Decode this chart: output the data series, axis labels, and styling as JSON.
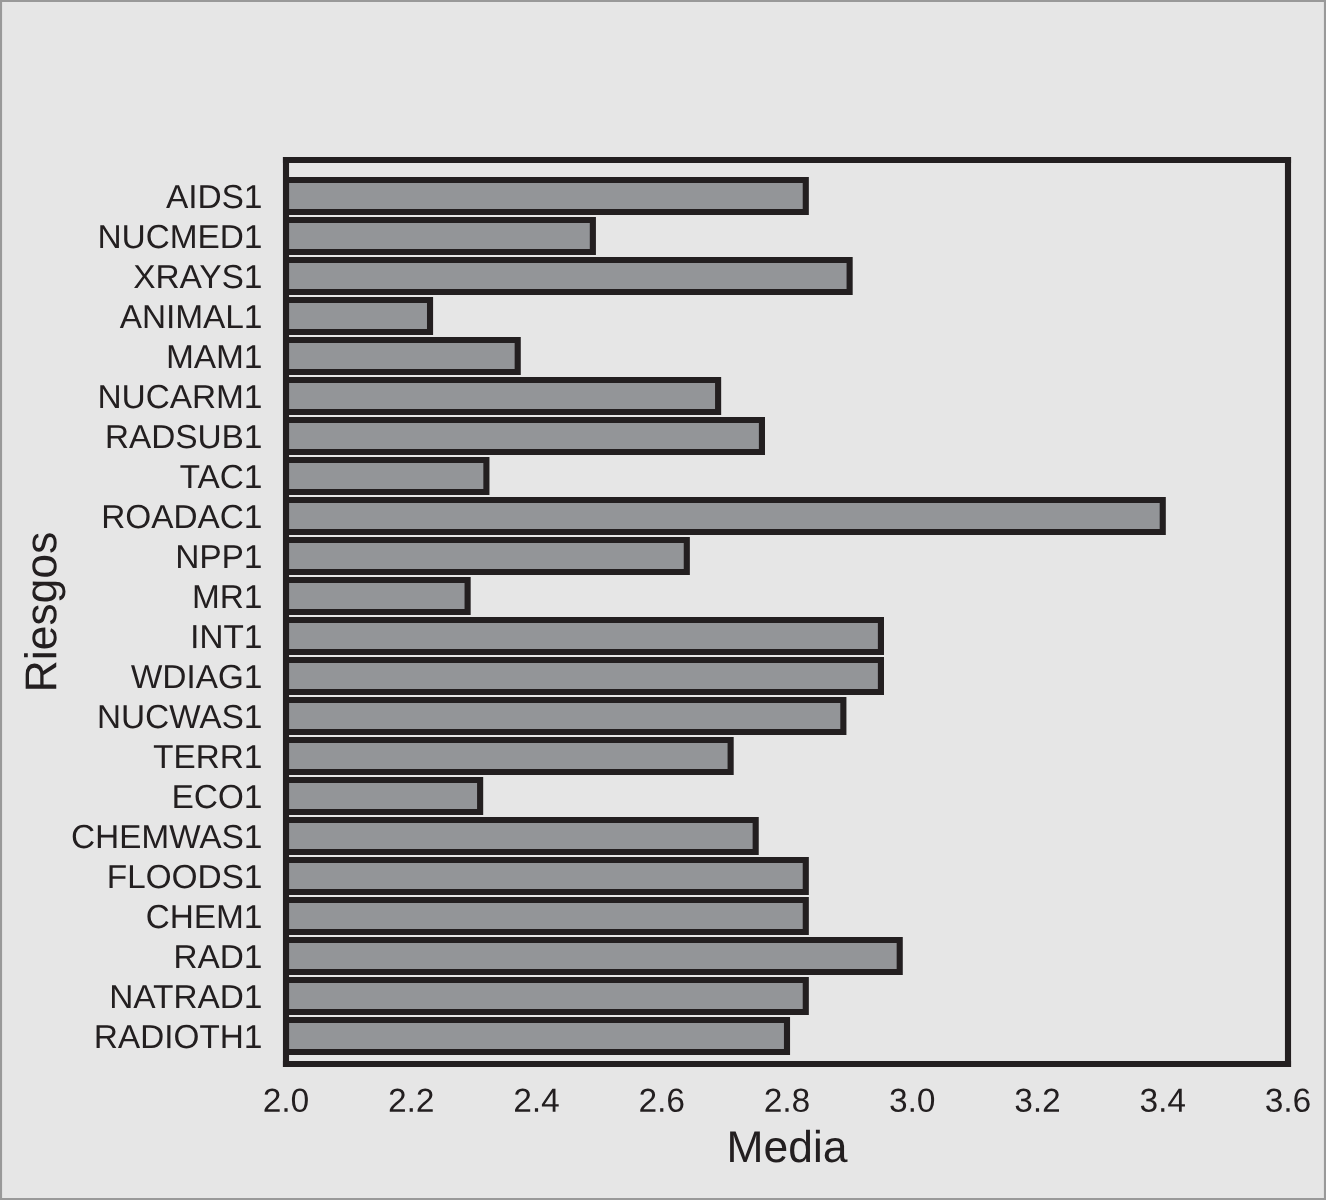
{
  "chart_data": {
    "type": "bar",
    "orientation": "horizontal",
    "xlabel": "Media",
    "ylabel": "Riesgos",
    "categories": [
      "AIDS1",
      "NUCMED1",
      "XRAYS1",
      "ANIMAL1",
      "MAM1",
      "NUCARM1",
      "RADSUB1",
      "TAC1",
      "ROADAC1",
      "NPP1",
      "MR1",
      "INT1",
      "WDIAG1",
      "NUCWAS1",
      "TERR1",
      "ECO1",
      "CHEMWAS1",
      "FLOODS1",
      "CHEM1",
      "RAD1",
      "NATRAD1",
      "RADIOTH1"
    ],
    "values": [
      2.83,
      2.49,
      2.9,
      2.23,
      2.37,
      2.69,
      2.76,
      2.32,
      3.4,
      2.64,
      2.29,
      2.95,
      2.95,
      2.89,
      2.71,
      2.31,
      2.75,
      2.83,
      2.83,
      2.98,
      2.83,
      2.8
    ],
    "color": "#939598",
    "xlim": [
      2.0,
      3.6
    ],
    "xticks": [
      {
        "value": 2.0,
        "label": "2.0"
      },
      {
        "value": 2.2,
        "label": "2.2"
      },
      {
        "value": 2.4,
        "label": "2.4"
      },
      {
        "value": 2.6,
        "label": "2.6"
      },
      {
        "value": 2.8,
        "label": "2.8"
      },
      {
        "value": 3.0,
        "label": "3.0"
      },
      {
        "value": 3.2,
        "label": "3.2"
      },
      {
        "value": 3.4,
        "label": "3.4"
      },
      {
        "value": 3.6,
        "label": "3.6"
      }
    ],
    "grid": false
  }
}
